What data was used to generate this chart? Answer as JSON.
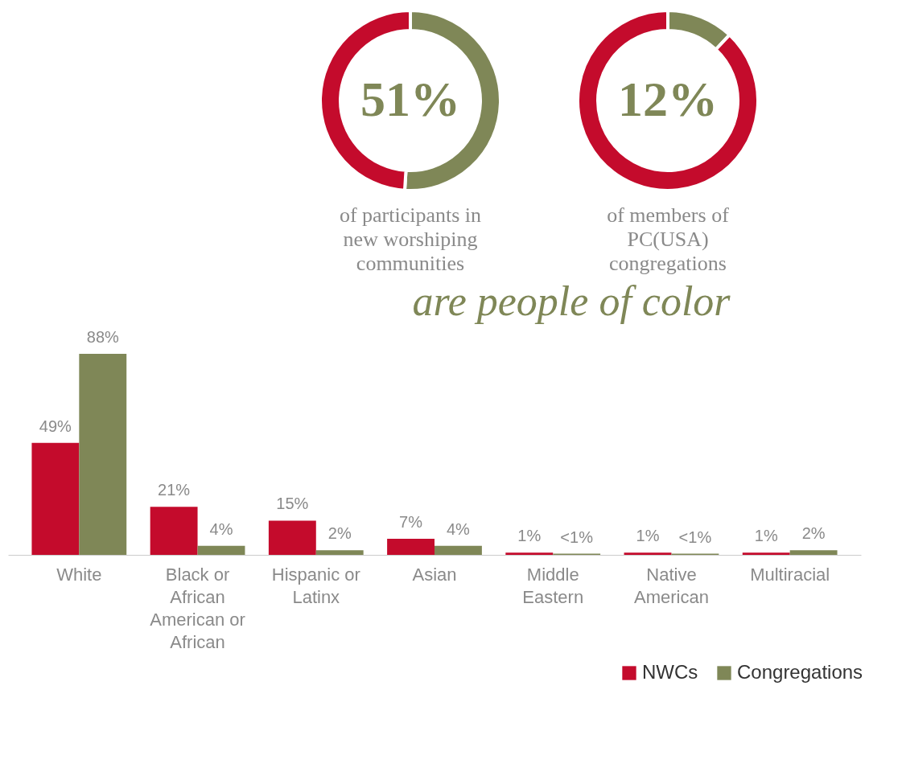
{
  "chart_data": [
    {
      "type": "bar",
      "categories": [
        "White",
        "Black or African American or African",
        "Hispanic or Latinx",
        "Asian",
        "Middle Eastern",
        "Native American",
        "Multiracial"
      ],
      "series": [
        {
          "name": "NWCs",
          "color": "#c40b2c",
          "values": [
            49,
            21,
            15,
            7,
            1,
            1,
            1
          ],
          "value_labels": [
            "49%",
            "21%",
            "15%",
            "7%",
            "1%",
            "1%",
            "1%"
          ]
        },
        {
          "name": "Congregations",
          "color": "#7f8757",
          "values": [
            88,
            4,
            2,
            4,
            0.5,
            0.5,
            2
          ],
          "value_labels": [
            "88%",
            "4%",
            "2%",
            "4%",
            "<1%",
            "<1%",
            "2%"
          ]
        }
      ],
      "legend": "bottom right",
      "grid": false
    },
    {
      "type": "donut",
      "categories": [
        null,
        null
      ],
      "values": [
        51,
        49
      ],
      "colors": [
        "#7f8757",
        "#c40b2c"
      ],
      "value_labels": [
        "51%",
        null
      ],
      "annotations": [
        "of participants in new worshiping communities"
      ]
    },
    {
      "type": "donut",
      "categories": [
        null,
        null
      ],
      "values": [
        12,
        88
      ],
      "colors": [
        "#7f8757",
        "#c40b2c"
      ],
      "value_labels": [
        "12%",
        null
      ],
      "annotations": [
        "of members of PC(USA) congregations",
        "are people of color"
      ]
    }
  ]
}
